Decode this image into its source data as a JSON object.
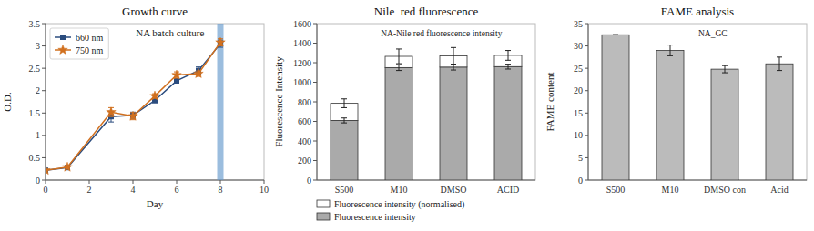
{
  "chart_data": [
    {
      "type": "line",
      "title": "Growth curve",
      "subtitle": "NA batch culture",
      "x_label": "Day",
      "y_label": "O.D.",
      "x": [
        0,
        1,
        3,
        4,
        5,
        6,
        7,
        8
      ],
      "series": [
        {
          "name": "660 nm",
          "marker": "square",
          "values": [
            0.22,
            0.28,
            1.42,
            1.45,
            1.78,
            2.22,
            2.45,
            3.05
          ],
          "errors": [
            0.01,
            0.02,
            0.12,
            0.07,
            0.05,
            0.05,
            0.08,
            0.08
          ]
        },
        {
          "name": "750 nm",
          "marker": "star",
          "values": [
            0.22,
            0.29,
            1.52,
            1.43,
            1.88,
            2.35,
            2.38,
            3.08
          ],
          "errors": [
            0.01,
            0.02,
            0.1,
            0.08,
            0.05,
            0.07,
            0.06,
            0.08
          ]
        }
      ],
      "xlim": [
        0,
        10
      ],
      "xticks": [
        0,
        2,
        4,
        6,
        8,
        10
      ],
      "ylim": [
        0,
        3.5
      ],
      "yticks": [
        0,
        0.5,
        1,
        1.5,
        2,
        2.5,
        3,
        3.5
      ],
      "vlines": [
        {
          "x": 8,
          "color": "#6699cc"
        }
      ],
      "legend": "upper left"
    },
    {
      "type": "bar",
      "stacked": true,
      "title": "Nile  red fluorescence",
      "subtitle": "NA-Nile red fluorescence intensity",
      "y_label": "Fluorescence Intensity",
      "categories": [
        "S500",
        "M10",
        "DMSO",
        "ACID"
      ],
      "series": [
        {
          "name": "Fluorescence intensity",
          "color": "#aaaaaa",
          "values": [
            610,
            1150,
            1155,
            1160
          ],
          "errors": [
            25,
            30,
            30,
            25
          ]
        },
        {
          "name": "Fluorescence intensity (normalised)",
          "color": "#ffffff",
          "values": [
            175,
            115,
            115,
            115
          ],
          "errors": [
            45,
            75,
            85,
            50
          ]
        }
      ],
      "ylim": [
        0,
        1600
      ],
      "yticks": [
        0,
        200,
        400,
        600,
        800,
        1000,
        1200,
        1400,
        1600
      ],
      "legend": "bottom"
    },
    {
      "type": "bar",
      "title": "FAME analysis",
      "subtitle": "NA_GC",
      "y_label": "FAME content",
      "categories": [
        "S500",
        "M10",
        "DMSO con",
        "Acid"
      ],
      "values": [
        32.5,
        29.0,
        24.8,
        26.0
      ],
      "errors": [
        0.0,
        1.2,
        0.8,
        1.5
      ],
      "color": "#bbbbbb",
      "ylim": [
        0,
        35
      ],
      "yticks": [
        0,
        5,
        10,
        15,
        20,
        25,
        30,
        35
      ]
    }
  ]
}
